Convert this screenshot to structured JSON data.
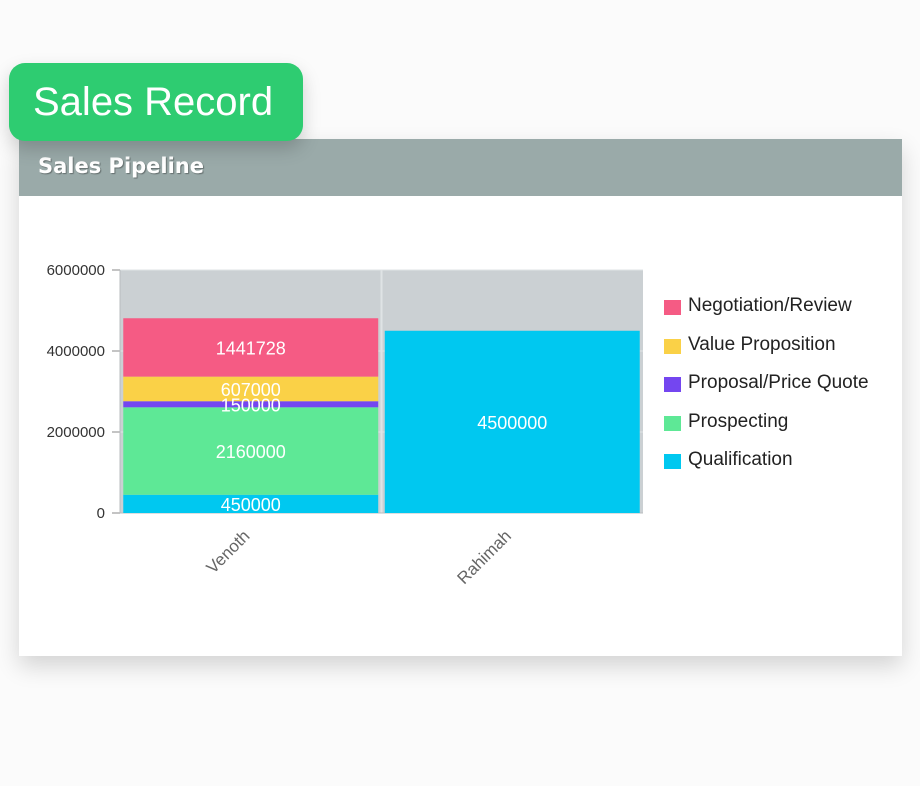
{
  "page": {
    "badge_label": "Sales Record",
    "card_title": "Sales Pipeline"
  },
  "chart_data": {
    "type": "bar",
    "stacked": true,
    "title": "",
    "xlabel": "",
    "ylabel": "",
    "ylim": [
      0,
      6000000
    ],
    "yticks": [
      "0",
      "2000000",
      "4000000",
      "6000000"
    ],
    "categories": [
      "Venoth",
      "Rahimah"
    ],
    "series": [
      {
        "name": "Qualification",
        "color": "#00c8f0",
        "values": [
          450000,
          4500000
        ]
      },
      {
        "name": "Prospecting",
        "color": "#5ee896",
        "values": [
          2160000,
          0
        ]
      },
      {
        "name": "Proposal/Price Quote",
        "color": "#7446f0",
        "values": [
          150000,
          0
        ]
      },
      {
        "name": "Value Proposition",
        "color": "#fad147",
        "values": [
          607000,
          0
        ]
      },
      {
        "name": "Negotiation/Review",
        "color": "#f55b84",
        "values": [
          1441728,
          0
        ]
      }
    ],
    "legend": {
      "position": "right",
      "order": [
        "Negotiation/Review",
        "Value Proposition",
        "Proposal/Price Quote",
        "Prospecting",
        "Qualification"
      ]
    },
    "grid": true,
    "plot_background": "#cbd0d3"
  }
}
